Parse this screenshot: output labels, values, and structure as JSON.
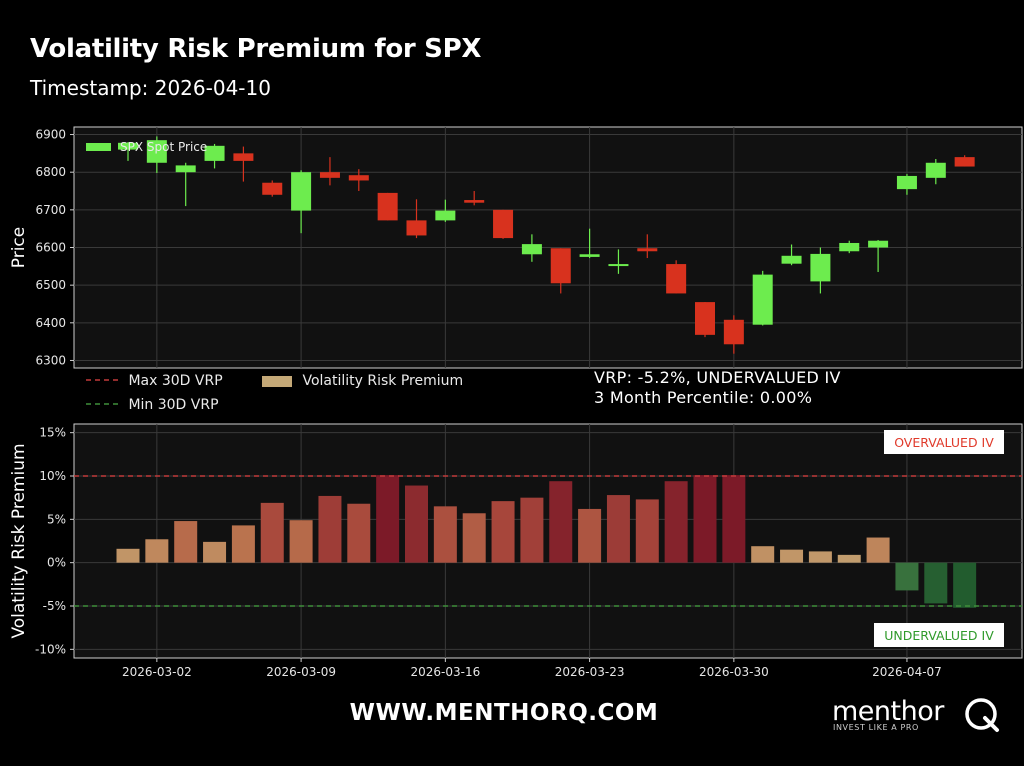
{
  "header": {
    "title": "Volatility Risk Premium for SPX",
    "subtitle": "Timestamp: 2026-04-10"
  },
  "info": {
    "line1": "VRP: -5.2%, UNDERVALUED IV",
    "line2": "3 Month Percentile: 0.00%"
  },
  "legend": {
    "max_label": "Max 30D VRP",
    "min_label": "Min 30D VRP",
    "vrp_label": "Volatility Risk Premium"
  },
  "footer": {
    "url": "WWW.MENTHORQ.COM",
    "logo_text": "menthor",
    "logo_tagline": "INVEST LIKE A PRO"
  },
  "colors": {
    "background": "#000000",
    "panel": "#111111",
    "up": "#6dec4e",
    "down": "#d8321e",
    "max_line": "#c23a3a",
    "min_line": "#3f8f3a",
    "overvalued_text": "#e03a2b",
    "undervalued_text": "#2f9a2a"
  },
  "chart_data": [
    {
      "type": "candlestick",
      "ylabel": "Price",
      "ylim": [
        6280,
        6920
      ],
      "yticks": [
        6300,
        6400,
        6500,
        6600,
        6700,
        6800,
        6900
      ],
      "legend": "SPX Spot Price",
      "grid": true,
      "candles": [
        {
          "date": "2026-02-27",
          "open": 6860,
          "high": 6880,
          "low": 6830,
          "close": 6878
        },
        {
          "date": "2026-03-02",
          "open": 6825,
          "high": 6895,
          "low": 6798,
          "close": 6885
        },
        {
          "date": "2026-03-03",
          "open": 6800,
          "high": 6825,
          "low": 6710,
          "close": 6818
        },
        {
          "date": "2026-03-04",
          "open": 6830,
          "high": 6875,
          "low": 6810,
          "close": 6870
        },
        {
          "date": "2026-03-05",
          "open": 6850,
          "high": 6868,
          "low": 6775,
          "close": 6830
        },
        {
          "date": "2026-03-06",
          "open": 6772,
          "high": 6778,
          "low": 6735,
          "close": 6740
        },
        {
          "date": "2026-03-09",
          "open": 6698,
          "high": 6805,
          "low": 6638,
          "close": 6800
        },
        {
          "date": "2026-03-10",
          "open": 6800,
          "high": 6840,
          "low": 6765,
          "close": 6785
        },
        {
          "date": "2026-03-11",
          "open": 6792,
          "high": 6808,
          "low": 6750,
          "close": 6778
        },
        {
          "date": "2026-03-12",
          "open": 6745,
          "high": 6745,
          "low": 6672,
          "close": 6672
        },
        {
          "date": "2026-03-13",
          "open": 6672,
          "high": 6728,
          "low": 6625,
          "close": 6632
        },
        {
          "date": "2026-03-16",
          "open": 6672,
          "high": 6727,
          "low": 6668,
          "close": 6698
        },
        {
          "date": "2026-03-17",
          "open": 6726,
          "high": 6750,
          "low": 6712,
          "close": 6719
        },
        {
          "date": "2026-03-18",
          "open": 6700,
          "high": 6700,
          "low": 6623,
          "close": 6625
        },
        {
          "date": "2026-03-19",
          "open": 6582,
          "high": 6635,
          "low": 6562,
          "close": 6609
        },
        {
          "date": "2026-03-20",
          "open": 6598,
          "high": 6598,
          "low": 6478,
          "close": 6505
        },
        {
          "date": "2026-03-23",
          "open": 6575,
          "high": 6650,
          "low": 6572,
          "close": 6582
        },
        {
          "date": "2026-03-24",
          "open": 6552,
          "high": 6595,
          "low": 6530,
          "close": 6556
        },
        {
          "date": "2026-03-25",
          "open": 6598,
          "high": 6635,
          "low": 6572,
          "close": 6590
        },
        {
          "date": "2026-03-26",
          "open": 6556,
          "high": 6566,
          "low": 6478,
          "close": 6478
        },
        {
          "date": "2026-03-27",
          "open": 6455,
          "high": 6455,
          "low": 6362,
          "close": 6368
        },
        {
          "date": "2026-03-30",
          "open": 6408,
          "high": 6420,
          "low": 6318,
          "close": 6343
        },
        {
          "date": "2026-03-31",
          "open": 6395,
          "high": 6538,
          "low": 6393,
          "close": 6528
        },
        {
          "date": "2026-04-01",
          "open": 6557,
          "high": 6608,
          "low": 6553,
          "close": 6578
        },
        {
          "date": "2026-04-02",
          "open": 6510,
          "high": 6600,
          "low": 6478,
          "close": 6583
        },
        {
          "date": "2026-04-03",
          "open": 6590,
          "high": 6618,
          "low": 6585,
          "close": 6612
        },
        {
          "date": "2026-04-06",
          "open": 6600,
          "high": 6620,
          "low": 6535,
          "close": 6618
        },
        {
          "date": "2026-04-07",
          "open": 6755,
          "high": 6795,
          "low": 6740,
          "close": 6790
        },
        {
          "date": "2026-04-08",
          "open": 6785,
          "high": 6835,
          "low": 6768,
          "close": 6825
        },
        {
          "date": "2026-04-09",
          "open": 6840,
          "high": 6845,
          "low": 6815,
          "close": 6815
        }
      ]
    },
    {
      "type": "bar",
      "ylabel": "Volatility Risk Premium",
      "ylim": [
        -0.11,
        0.16
      ],
      "yticks": [
        -0.1,
        -0.05,
        0,
        0.05,
        0.1,
        0.15
      ],
      "ytick_labels": [
        "-10%",
        "-5%",
        "0%",
        "5%",
        "10%",
        "15%"
      ],
      "legend": "Volatility Risk Premium",
      "max_line": 0.1,
      "min_line": -0.05,
      "overvalued_label": "OVERVALUED IV",
      "undervalued_label": "UNDERVALUED IV",
      "grid": true,
      "dates": [
        "2026-02-27",
        "2026-03-02",
        "2026-03-03",
        "2026-03-04",
        "2026-03-05",
        "2026-03-06",
        "2026-03-09",
        "2026-03-10",
        "2026-03-11",
        "2026-03-12",
        "2026-03-13",
        "2026-03-16",
        "2026-03-17",
        "2026-03-18",
        "2026-03-19",
        "2026-03-20",
        "2026-03-23",
        "2026-03-24",
        "2026-03-25",
        "2026-03-26",
        "2026-03-27",
        "2026-03-30",
        "2026-03-31",
        "2026-04-01",
        "2026-04-02",
        "2026-04-03",
        "2026-04-06",
        "2026-04-07",
        "2026-04-08",
        "2026-04-09"
      ],
      "values": [
        0.016,
        0.027,
        0.048,
        0.024,
        0.043,
        0.069,
        0.049,
        0.077,
        0.068,
        0.101,
        0.089,
        0.065,
        0.057,
        0.071,
        0.075,
        0.094,
        0.062,
        0.078,
        0.073,
        0.094,
        0.101,
        0.101,
        0.019,
        0.015,
        0.013,
        0.009,
        0.029,
        -0.032,
        -0.047,
        -0.052
      ]
    }
  ],
  "x_axis": {
    "tick_labels": [
      "2026-03-02",
      "2026-03-09",
      "2026-03-16",
      "2026-03-23",
      "2026-03-30",
      "2026-04-07"
    ]
  }
}
